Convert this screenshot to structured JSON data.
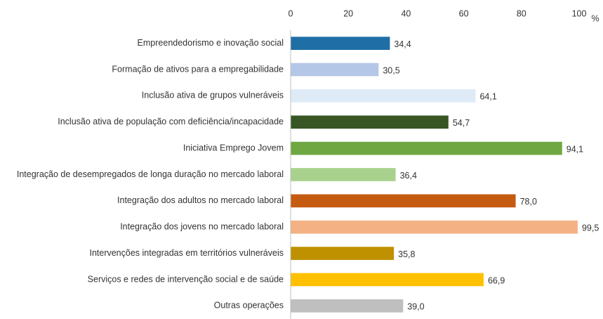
{
  "chart_data": {
    "type": "hbar",
    "categories": [
      "Empreendedorismo e inovação social",
      "Formação de ativos para a empregabilidade",
      "Inclusão ativa de grupos vulneráveis",
      "Inclusão ativa de população com deficiência/incapacidade",
      "Iniciativa Emprego Jovem",
      "Integração de desempregados de longa duração no mercado laboral",
      "Integração dos adultos no mercado laboral",
      "Integração dos jovens no mercado laboral",
      "Intervenções integradas em territórios vulneráveis",
      "Serviços e redes de intervenção social e de saúde",
      "Outras operações"
    ],
    "values": [
      34.4,
      30.5,
      64.1,
      54.7,
      94.1,
      36.4,
      78.0,
      99.5,
      35.8,
      66.9,
      39.0
    ],
    "value_labels": [
      "34,4",
      "30,5",
      "64,1",
      "54,7",
      "94,1",
      "36,4",
      "78,0",
      "99,5",
      "35,8",
      "66,9",
      "39,0"
    ],
    "colors": [
      "#1f6ea6",
      "#b4c7e7",
      "#deebf7",
      "#375623",
      "#6fa842",
      "#a9d18e",
      "#c55a11",
      "#f4b183",
      "#bf9000",
      "#ffc000",
      "#bfbfbf"
    ],
    "x_label": "%",
    "xlim": [
      0,
      100
    ],
    "xticks": [
      0,
      20,
      40,
      60,
      80,
      100
    ],
    "grid": false
  }
}
